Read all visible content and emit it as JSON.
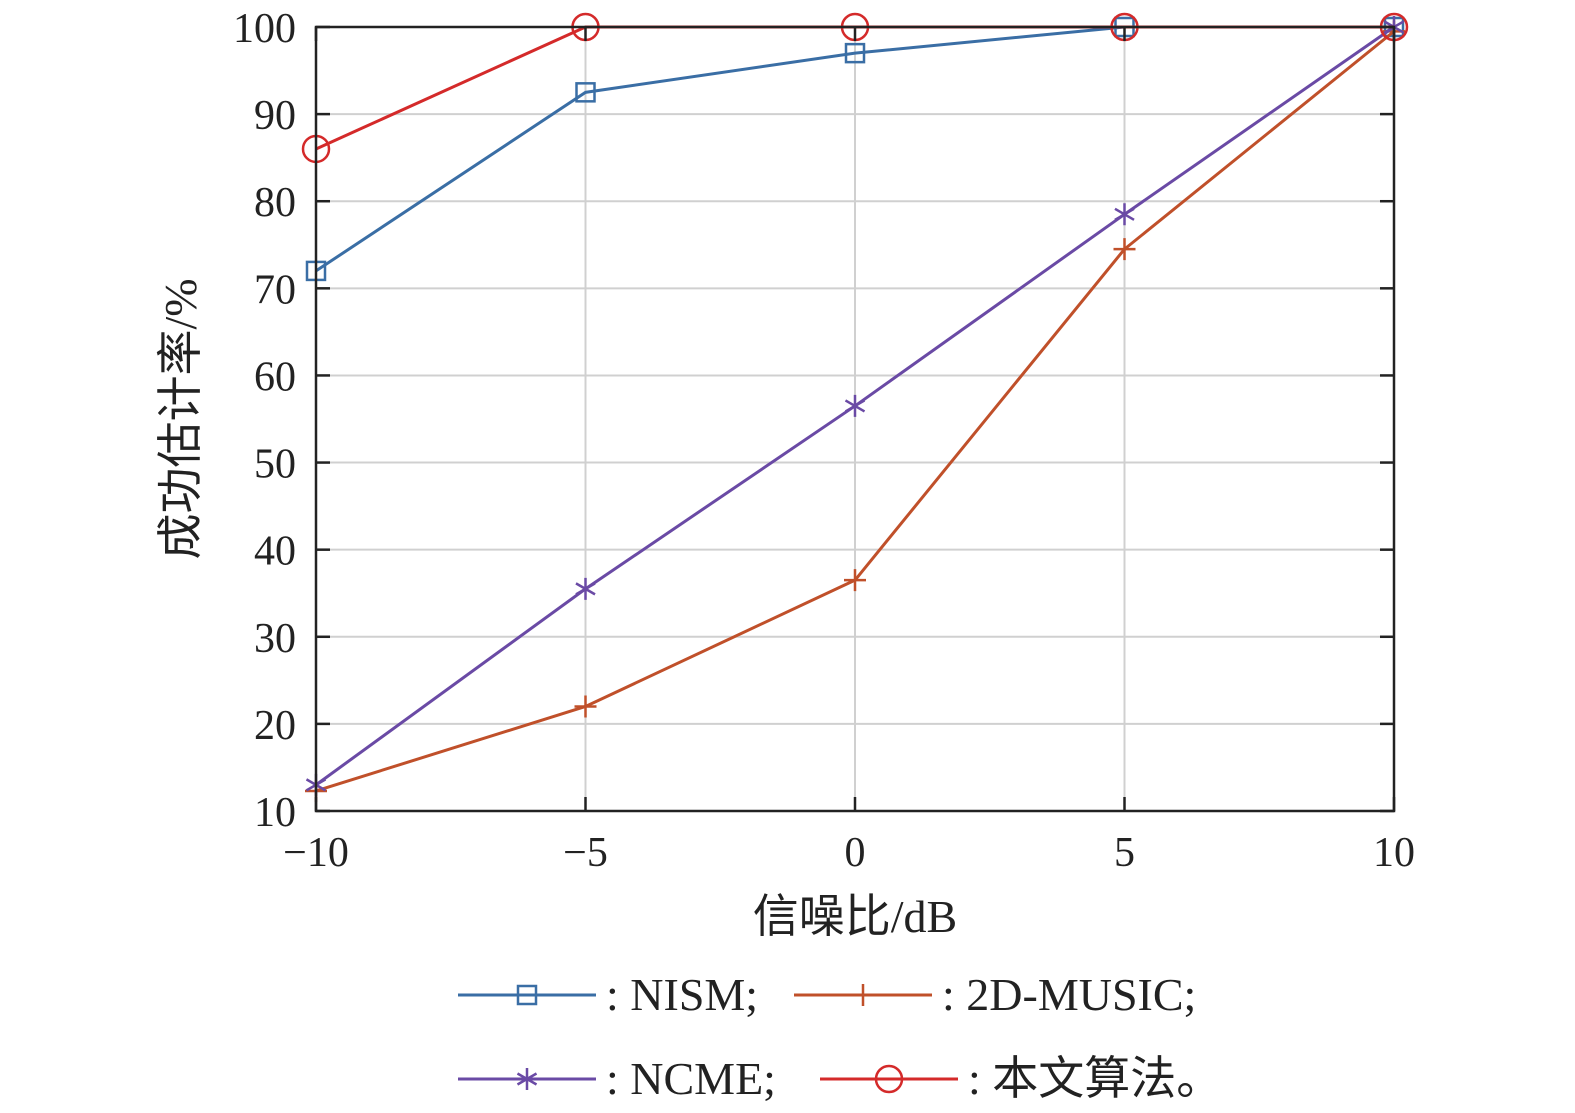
{
  "chart_data": {
    "type": "line",
    "title": "",
    "xlabel": "信噪比/dB",
    "ylabel": "成功估计率/%",
    "x": [
      -10,
      -5,
      0,
      5,
      10
    ],
    "x_tick_labels": [
      "−10",
      "−5",
      "0",
      "5",
      "10"
    ],
    "y_ticks": [
      10,
      20,
      30,
      40,
      50,
      60,
      70,
      80,
      90,
      100
    ],
    "xlim": [
      -10,
      10
    ],
    "ylim": [
      10,
      100
    ],
    "grid": true,
    "legend_position": "bottom",
    "series": [
      {
        "name": "NISM",
        "legend_label": ": NISM;",
        "values": [
          72,
          92.5,
          97,
          100,
          100
        ],
        "color": "#3a6ea5",
        "marker": "square"
      },
      {
        "name": "2D-MUSIC",
        "legend_label": ": 2D-MUSIC;",
        "values": [
          12.3,
          22,
          36.5,
          74.5,
          99.5
        ],
        "color": "#c0502a",
        "marker": "plus"
      },
      {
        "name": "NCME",
        "legend_label": ": NCME;",
        "values": [
          13,
          35.5,
          56.5,
          78.5,
          100
        ],
        "color": "#6a4aa5",
        "marker": "asterisk"
      },
      {
        "name": "本文算法",
        "legend_label": ": 本文算法。",
        "values": [
          86,
          100,
          100,
          100,
          100
        ],
        "color": "#d42a2a",
        "marker": "circle"
      }
    ]
  }
}
